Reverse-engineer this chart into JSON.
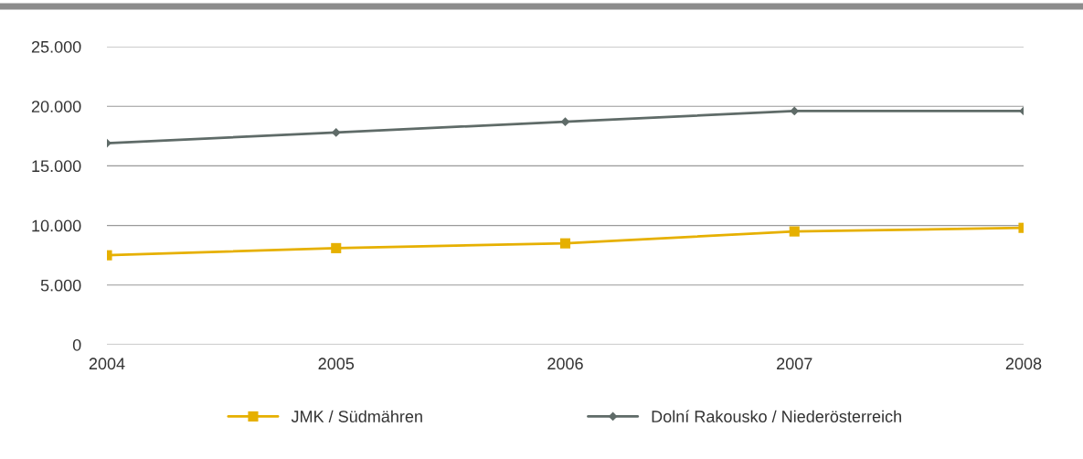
{
  "chart_data": {
    "type": "line",
    "x": [
      2004,
      2005,
      2006,
      2007,
      2008
    ],
    "series": [
      {
        "name": "JMK / Südmähren",
        "color": "#e6b000",
        "marker": "square",
        "values": [
          7500,
          8100,
          8500,
          9500,
          9800
        ]
      },
      {
        "name": "Dolní Rakousko / Niederösterreich",
        "color": "#5f6b68",
        "marker": "diamond",
        "values": [
          16900,
          17800,
          18700,
          19600,
          19600
        ]
      }
    ],
    "xlim": [
      2004,
      2008
    ],
    "xticks": [
      2004,
      2005,
      2006,
      2007,
      2008
    ],
    "ylim": [
      0,
      25000
    ],
    "yticks": [
      {
        "value": 0,
        "label": "0"
      },
      {
        "value": 5000,
        "label": "5.000"
      },
      {
        "value": 10000,
        "label": "10.000"
      },
      {
        "value": 15000,
        "label": "15.000"
      },
      {
        "value": 20000,
        "label": "20.000"
      },
      {
        "value": 25000,
        "label": "25.000"
      }
    ],
    "grid": "y",
    "legend": "bottom",
    "line_style": "solid"
  }
}
